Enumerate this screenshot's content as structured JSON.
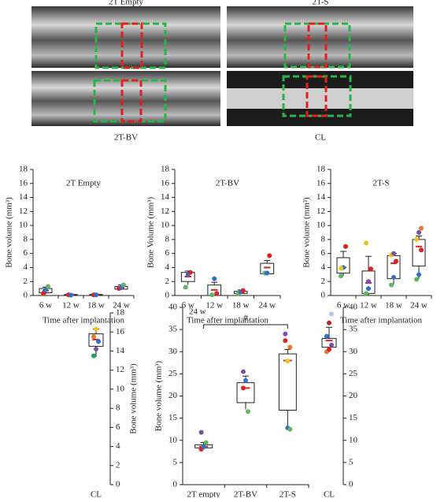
{
  "images": [
    {
      "label": "2T Empty"
    },
    {
      "label": "2T-S"
    },
    {
      "label": "2T-BV"
    },
    {
      "label": "CL"
    }
  ],
  "chart_data": [
    {
      "type": "box",
      "title": "2T Empty",
      "ylabel": "Bone volume (mm³)",
      "xlabel": "Time after implantation",
      "categories": [
        "6 w",
        "12 w",
        "18 w",
        "24 w"
      ],
      "ylim": [
        0,
        18
      ],
      "yticks": [
        0,
        2,
        4,
        6,
        8,
        10,
        12,
        14,
        16,
        18
      ],
      "point_colors": [
        "#e02020",
        "#2f6fd0",
        "#5cb85c",
        "#f0c419",
        "#7b4fa8",
        "#e8762b"
      ],
      "boxes": [
        {
          "low": 0.2,
          "q1": 0.4,
          "mean": 0.7,
          "q3": 1.0,
          "high": 1.2,
          "points": [
            0.3,
            0.8,
            1.3
          ]
        },
        {
          "low": 0,
          "q1": 0.05,
          "mean": 0.1,
          "q3": 0.15,
          "high": 0.2,
          "points": [
            0.1,
            0.05
          ]
        },
        {
          "low": 0,
          "q1": 0.05,
          "mean": 0.1,
          "q3": 0.15,
          "high": 0.2,
          "points": [
            0.1,
            0.1
          ]
        },
        {
          "low": 0.8,
          "q1": 0.9,
          "mean": 1.1,
          "q3": 1.3,
          "high": 1.5,
          "points": [
            1.0,
            1.2,
            1.5
          ]
        }
      ]
    },
    {
      "type": "box",
      "title": "2T-BV",
      "ylabel": "Bone Volume (mm³)",
      "xlabel": "Time after implantation",
      "categories": [
        "6 w",
        "12 w",
        "18 w",
        "24 w"
      ],
      "ylim": [
        0,
        18
      ],
      "yticks": [
        0,
        2,
        4,
        6,
        8,
        10,
        12,
        14,
        16,
        18
      ],
      "point_colors": [
        "#5cb85c",
        "#2f6fd0",
        "#e02020",
        "#f0c419",
        "#7b4fa8",
        "#e8762b"
      ],
      "boxes": [
        {
          "low": 1.5,
          "q1": 2.0,
          "mean": 2.7,
          "q3": 3.3,
          "high": 3.5,
          "points": [
            1.2,
            3.0,
            3.3
          ]
        },
        {
          "low": 0,
          "q1": 0,
          "mean": 0.8,
          "q3": 1.5,
          "high": 1.9,
          "points": [
            0.1,
            2.4,
            0.3
          ]
        },
        {
          "low": 0.2,
          "q1": 0.3,
          "mean": 0.45,
          "q3": 0.6,
          "high": 0.8,
          "points": [
            0.3,
            0.5,
            0.7
          ]
        },
        {
          "low": 3.1,
          "q1": 3.1,
          "mean": 4.0,
          "q3": 4.6,
          "high": 5.0,
          "points": [
            3.2,
            3.2,
            5.7
          ]
        }
      ]
    },
    {
      "type": "box",
      "title": "2T-S",
      "ylabel": "Bone volume (mm³)",
      "xlabel": "Time after implantation",
      "categories": [
        "6 w",
        "12 w",
        "18 w",
        "24 w"
      ],
      "ylim": [
        0,
        18
      ],
      "yticks": [
        0,
        2,
        4,
        6,
        8,
        10,
        12,
        14,
        16,
        18
      ],
      "point_colors": [
        "#5cb85c",
        "#2f6fd0",
        "#e02020",
        "#f0c419",
        "#7b4fa8",
        "#e8762b"
      ],
      "boxes": [
        {
          "low": 2.8,
          "q1": 3.2,
          "mean": 4.0,
          "q3": 5.4,
          "high": 6.3,
          "points": [
            2.8,
            4.0,
            7.0,
            3.9
          ]
        },
        {
          "low": 0,
          "q1": 0.3,
          "mean": 1.8,
          "q3": 3.5,
          "high": 5.6,
          "points": [
            0.3,
            1.0,
            3.8,
            7.5,
            2.0
          ]
        },
        {
          "low": 1.6,
          "q1": 2.4,
          "mean": 4.6,
          "q3": 5.7,
          "high": 6.0,
          "points": [
            1.5,
            2.6,
            4.9,
            5.8,
            6.0
          ]
        },
        {
          "low": 2.4,
          "q1": 4.2,
          "mean": 7.0,
          "q3": 8.0,
          "high": 8.5,
          "points": [
            2.3,
            3.0,
            6.5,
            8.0,
            9.0,
            9.6
          ]
        }
      ]
    },
    {
      "type": "box",
      "ylabel": "Bone volume (mm³)",
      "categories": [
        "CL"
      ],
      "ylim": [
        0,
        18
      ],
      "yticks": [
        0,
        2,
        4,
        6,
        8,
        10,
        12,
        14,
        16,
        18
      ],
      "point_colors": [
        "#20a060",
        "#7b4fa8",
        "#2f6fd0",
        "#e8762b",
        "#f0c419"
      ],
      "boxes": [
        {
          "low": 13.4,
          "q1": 14.5,
          "mean": 15.2,
          "q3": 15.8,
          "high": 16.3,
          "points": [
            13.5,
            14.2,
            15.0,
            15.5,
            16.3
          ]
        }
      ]
    },
    {
      "type": "box",
      "title": "24 w",
      "ylabel": "Bone volume (mm³)",
      "annotation": "#",
      "categories": [
        "2T empty",
        "2T-BV",
        "2T-S"
      ],
      "ylim": [
        0,
        40
      ],
      "yticks": [
        0,
        5,
        10,
        15,
        20,
        25,
        30,
        35,
        40
      ],
      "point_colors": [
        "#e02020",
        "#2f6fd0",
        "#5cb85c",
        "#7b4fa8",
        "#f0c419",
        "#e8762b"
      ],
      "boxes": [
        {
          "low": 8.1,
          "q1": 8.3,
          "mean": 8.6,
          "q3": 9.0,
          "high": 9.5,
          "points": [
            8.0,
            8.5,
            9.5,
            11.8
          ]
        },
        {
          "low": 17,
          "q1": 18.5,
          "mean": 21.8,
          "q3": 23,
          "high": 24.5,
          "points": [
            21.8,
            23.5,
            16.5,
            25.5
          ]
        },
        {
          "low": 12.5,
          "q1": 16.8,
          "mean": 28,
          "q3": 29.5,
          "high": 30.5,
          "points": [
            32.5,
            12.8,
            12.5,
            34,
            27.9,
            31
          ]
        }
      ]
    },
    {
      "type": "box",
      "categories": [
        "CL"
      ],
      "ylim": [
        0,
        40
      ],
      "yticks": [
        0,
        5,
        10,
        15,
        20,
        25,
        30,
        35,
        40
      ],
      "point_colors": [
        "#e8762b",
        "#e02020",
        "#7b4fa8",
        "#2f6fd0",
        "#c02020",
        "#a9c8f0"
      ],
      "boxes": [
        {
          "low": 30,
          "q1": 31,
          "mean": 32.5,
          "q3": 33,
          "high": 35.5,
          "points": [
            30,
            30.5,
            31.5,
            33.5,
            36.5,
            38.5
          ]
        }
      ]
    }
  ]
}
